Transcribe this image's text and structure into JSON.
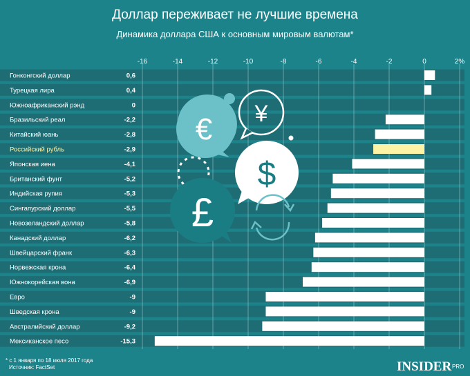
{
  "colors": {
    "background": "#1d838b",
    "band": "#1f6d74",
    "bar": "#ffffff",
    "highlight": "#fdf3a6",
    "grid": "#8fc4c8",
    "accent_light": "#6cc0c8",
    "accent_dark": "#1b7d84"
  },
  "brand": {
    "name": "INSIDER",
    "suffix": "PRO"
  },
  "footer": {
    "note": "* с 1 января по 18 июля 2017 года",
    "source": "Источник: FactSet"
  },
  "chart_data": {
    "type": "bar",
    "orientation": "horizontal",
    "title": "Доллар переживает не лучшие времена",
    "subtitle": "Динамика доллара США к основным мировым валютам*",
    "xlim": [
      -16,
      2
    ],
    "xticks": [
      "-16",
      "-14",
      "-12",
      "-10",
      "-8",
      "-6",
      "-4",
      "-2",
      "0",
      "2%"
    ],
    "xtick_values": [
      -16,
      -14,
      -12,
      -10,
      -8,
      -6,
      -4,
      -2,
      0,
      2
    ],
    "grid": true,
    "highlight": "Российский рубль",
    "categories": [
      "Гонконгский доллар",
      "Турецкая лира",
      "Южноафриканский рэнд",
      "Бразильский реал",
      "Китайский юань",
      "Российский рубль",
      "Японская иена",
      "Британский фунт",
      "Индийская рупия",
      "Сингапурский доллар",
      "Новозеландский доллар",
      "Канадский доллар",
      "Швейцарский франк",
      "Норвежская крона",
      "Южнокорейская вона",
      "Евро",
      "Шведская крона",
      "Австралийский доллар",
      "Мексиканское песо"
    ],
    "values": [
      0.6,
      0.4,
      0,
      -2.2,
      -2.8,
      -2.9,
      -4.1,
      -5.2,
      -5.3,
      -5.5,
      -5.8,
      -6.2,
      -6.3,
      -6.4,
      -6.9,
      -9,
      -9,
      -9.2,
      -15.3
    ],
    "value_labels": [
      "0,6",
      "0,4",
      "0",
      "-2,2",
      "-2,8",
      "-2,9",
      "-4,1",
      "-5,2",
      "-5,3",
      "-5,5",
      "-5,8",
      "-6,2",
      "-6,3",
      "-6,4",
      "-6,9",
      "-9",
      "-9",
      "-9,2",
      "-15,3"
    ]
  }
}
